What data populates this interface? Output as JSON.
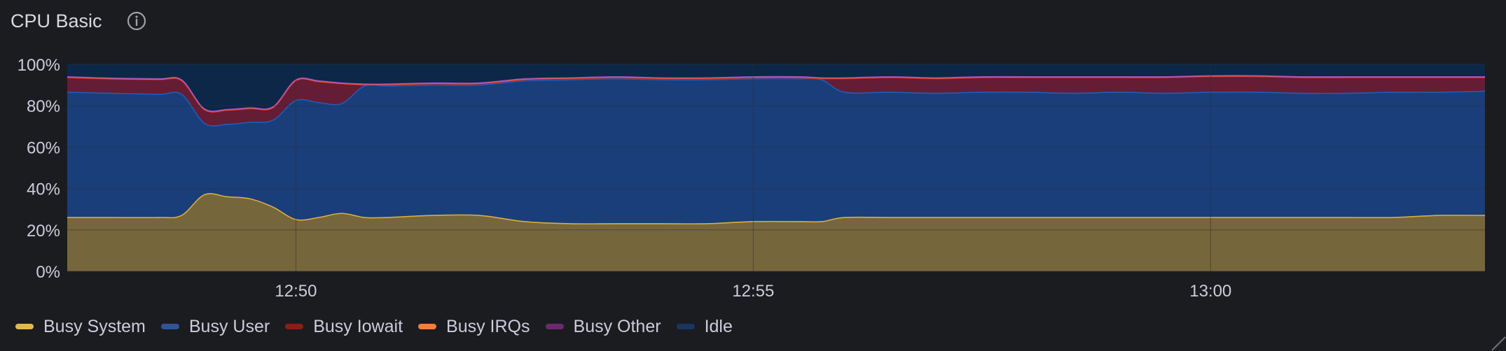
{
  "panel": {
    "title": "CPU Basic",
    "info_icon": "info-circle-icon"
  },
  "colors": {
    "background": "#1b1c20",
    "plot_background": "#16233d",
    "grid": "#2c3039",
    "tick_text": "#ccccdc"
  },
  "chart_data": {
    "type": "area",
    "stacked": true,
    "title": "CPU Basic",
    "xlabel": "",
    "ylabel": "",
    "ylim": [
      0,
      100
    ],
    "y_ticks": [
      "0%",
      "20%",
      "40%",
      "60%",
      "80%",
      "100%"
    ],
    "x_ticks": [
      "12:50",
      "12:55",
      "13:00"
    ],
    "xlim": [
      "12:47:30",
      "13:03:00"
    ],
    "grid": true,
    "legend_position": "bottom-left",
    "x": [
      "12:47:30",
      "12:48:00",
      "12:48:30",
      "12:48:45",
      "12:49:00",
      "12:49:15",
      "12:49:30",
      "12:49:45",
      "12:50:00",
      "12:50:15",
      "12:50:30",
      "12:50:45",
      "12:51:00",
      "12:51:30",
      "12:52:00",
      "12:52:30",
      "12:53:00",
      "12:53:30",
      "12:54:00",
      "12:54:30",
      "12:55:00",
      "12:55:30",
      "12:55:45",
      "12:56:00",
      "12:56:30",
      "12:57:00",
      "12:57:30",
      "12:58:00",
      "12:58:30",
      "12:59:00",
      "12:59:30",
      "13:00:00",
      "13:00:30",
      "13:01:00",
      "13:01:30",
      "13:02:00",
      "13:02:30",
      "13:03:00"
    ],
    "series": [
      {
        "name": "Busy System",
        "color": "#eab839",
        "values": [
          26,
          26,
          26,
          27,
          37,
          36,
          35,
          31,
          25,
          26,
          28,
          26,
          26,
          27,
          27,
          24,
          23,
          23,
          23,
          23,
          24,
          24,
          24,
          26,
          26,
          26,
          26,
          26,
          26,
          26,
          26,
          26,
          26,
          26,
          26,
          26,
          27,
          27
        ]
      },
      {
        "name": "Busy User",
        "color": "#1f60c4",
        "values": [
          60.5,
          60,
          59.5,
          58.5,
          34.5,
          35,
          37,
          42,
          57.5,
          55.5,
          53,
          63.5,
          63.5,
          63,
          63,
          68,
          69.5,
          70,
          69.5,
          69.5,
          69,
          69,
          68.5,
          60.5,
          60.5,
          60,
          60.5,
          60.5,
          60,
          60.5,
          60,
          60.5,
          60.5,
          60,
          60,
          60.5,
          59.5,
          60
        ]
      },
      {
        "name": "Busy Iowait",
        "color": "#c4162a",
        "values": [
          7,
          6.8,
          7,
          6.5,
          6.5,
          6.7,
          6.5,
          6,
          9.5,
          10,
          9.5,
          0.5,
          0.5,
          0.5,
          0.5,
          0.5,
          0.5,
          0.5,
          0.5,
          0.5,
          0.5,
          0.5,
          0.5,
          6.5,
          7,
          7,
          7,
          7,
          7.5,
          7,
          7.5,
          7.5,
          7.5,
          7.5,
          7.5,
          7,
          7,
          6.5
        ]
      },
      {
        "name": "Busy IRQs",
        "color": "#ff780a",
        "values": [
          0.3,
          0.3,
          0.3,
          0.3,
          0.3,
          0.3,
          0.3,
          0.3,
          0.3,
          0.3,
          0.3,
          0.3,
          0.3,
          0.3,
          0.3,
          0.3,
          0.3,
          0.3,
          0.3,
          0.3,
          0.3,
          0.3,
          0.3,
          0.3,
          0.3,
          0.3,
          0.3,
          0.3,
          0.3,
          0.3,
          0.3,
          0.3,
          0.3,
          0.3,
          0.3,
          0.3,
          0.3,
          0.3
        ]
      },
      {
        "name": "Busy Other",
        "color": "#a352cc",
        "values": [
          0.2,
          0.2,
          0.2,
          0.2,
          0.2,
          0.2,
          0.2,
          0.2,
          0.2,
          0.2,
          0.2,
          0.2,
          0.2,
          0.2,
          0.2,
          0.2,
          0.2,
          0.2,
          0.2,
          0.2,
          0.2,
          0.2,
          0.2,
          0.2,
          0.2,
          0.2,
          0.2,
          0.2,
          0.2,
          0.2,
          0.2,
          0.2,
          0.2,
          0.2,
          0.2,
          0.2,
          0.2,
          0.2
        ]
      },
      {
        "name": "Idle",
        "color": "#052b51",
        "values": [
          6,
          6.7,
          7,
          7.5,
          21.5,
          21.8,
          21,
          20.5,
          7.5,
          8,
          9,
          9.5,
          9.5,
          9,
          9,
          7,
          6.5,
          6,
          6.5,
          6.5,
          6,
          6,
          6.5,
          6.5,
          6,
          6.5,
          6,
          6,
          6,
          6,
          6,
          5.5,
          5.5,
          6,
          6,
          6,
          6,
          6
        ]
      }
    ]
  }
}
